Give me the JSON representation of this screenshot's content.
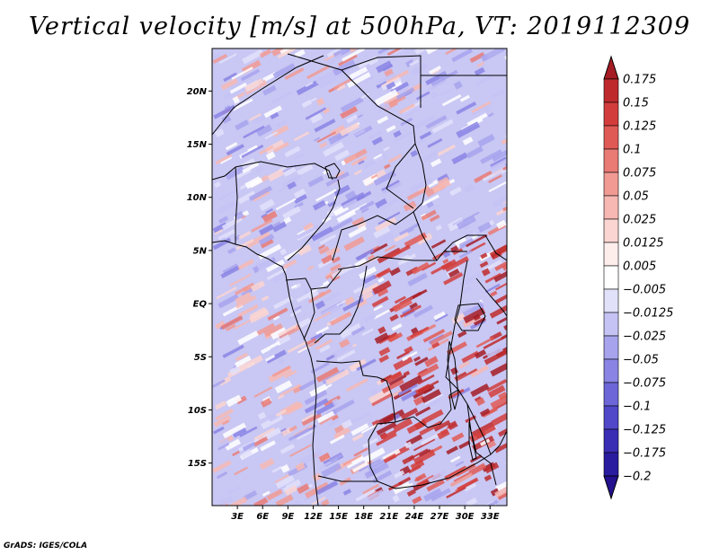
{
  "title": "Vertical velocity [m/s] at 500hPa, VT: 2019112309",
  "credit": "GrADS: IGES/COLA",
  "map": {
    "lon_range": [
      0,
      35
    ],
    "lat_range": [
      -19,
      24
    ],
    "lat_ticks": [
      {
        "lat": 20,
        "label": "20N"
      },
      {
        "lat": 15,
        "label": "15N"
      },
      {
        "lat": 10,
        "label": "10N"
      },
      {
        "lat": 5,
        "label": "5N"
      },
      {
        "lat": 0,
        "label": "EQ"
      },
      {
        "lat": -5,
        "label": "5S"
      },
      {
        "lat": -10,
        "label": "10S"
      },
      {
        "lat": -15,
        "label": "15S"
      }
    ],
    "lon_ticks": [
      {
        "lon": 3,
        "label": "3E"
      },
      {
        "lon": 6,
        "label": "6E"
      },
      {
        "lon": 9,
        "label": "9E"
      },
      {
        "lon": 12,
        "label": "12E"
      },
      {
        "lon": 15,
        "label": "15E"
      },
      {
        "lon": 18,
        "label": "18E"
      },
      {
        "lon": 21,
        "label": "21E"
      },
      {
        "lon": 24,
        "label": "24E"
      },
      {
        "lon": 27,
        "label": "27E"
      },
      {
        "lon": 30,
        "label": "30E"
      },
      {
        "lon": 33,
        "label": "33E"
      }
    ]
  },
  "colorbar": {
    "over_color": "#a51c24",
    "under_color": "#23118f",
    "bins": [
      {
        "label": "0.175",
        "color": "#a51c24"
      },
      {
        "label": "0.15",
        "color": "#be2a2c"
      },
      {
        "label": "0.125",
        "color": "#d23d3b"
      },
      {
        "label": "0.1",
        "color": "#e05a55"
      },
      {
        "label": "0.075",
        "color": "#e97a74"
      },
      {
        "label": "0.05",
        "color": "#f19a93"
      },
      {
        "label": "0.025",
        "color": "#f7b8b3"
      },
      {
        "label": "0.0125",
        "color": "#fad5d1"
      },
      {
        "label": "0.005",
        "color": "#fdeeec"
      },
      {
        "label": "−0.005",
        "color": "#ffffff"
      },
      {
        "label": "−0.0125",
        "color": "#e2e1fa"
      },
      {
        "label": "−0.025",
        "color": "#c5c3f4"
      },
      {
        "label": "−0.05",
        "color": "#a7a3ed"
      },
      {
        "label": "−0.075",
        "color": "#8a84e4"
      },
      {
        "label": "−0.1",
        "color": "#6c66d9"
      },
      {
        "label": "−0.125",
        "color": "#5047c9"
      },
      {
        "label": "−0.175",
        "color": "#3a2eb5"
      },
      {
        "label": "−0.2",
        "color": "#2a1c9f"
      }
    ]
  }
}
